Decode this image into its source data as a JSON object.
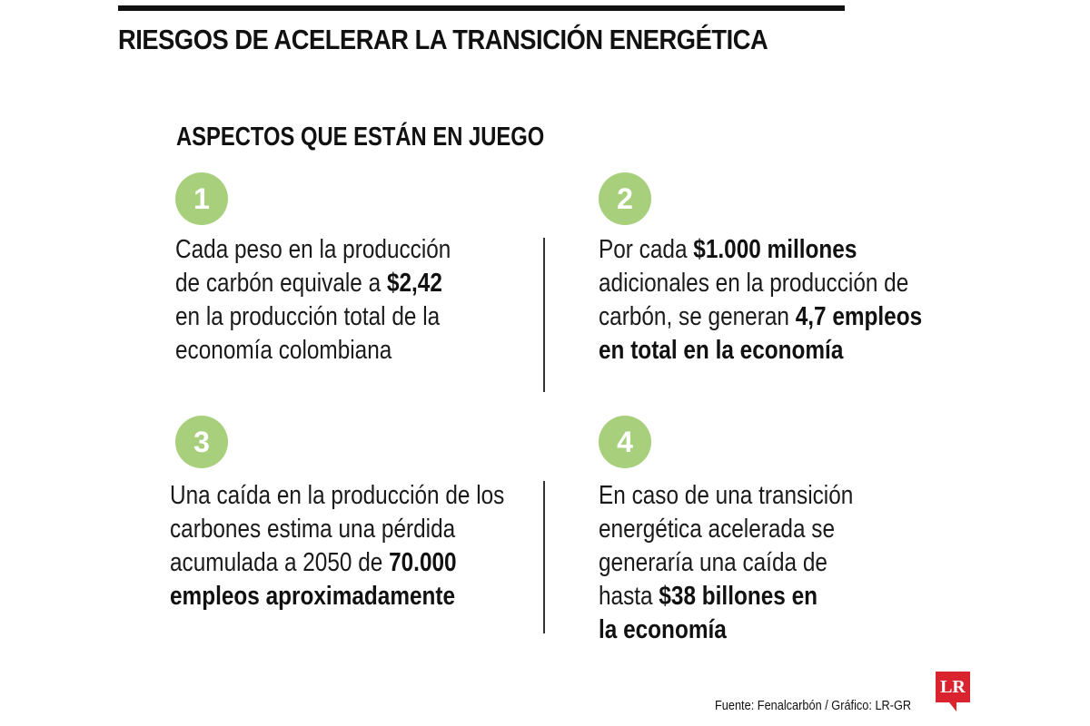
{
  "header": {
    "title": "RIESGOS DE ACELERAR LA TRANSICIÓN ENERGÉTICA"
  },
  "section": {
    "title": "ASPECTOS QUE ESTÁN EN JUEGO"
  },
  "colors": {
    "badge": "#a8d07c",
    "rule": "#111111",
    "logo": "#d9232e"
  },
  "items": [
    {
      "number": "1",
      "lines": [
        [
          {
            "t": "Cada peso en la producción",
            "b": false
          }
        ],
        [
          {
            "t": "de carbón equivale a ",
            "b": false
          },
          {
            "t": "$2,42",
            "b": true
          }
        ],
        [
          {
            "t": "en la producción total de la",
            "b": false
          }
        ],
        [
          {
            "t": "economía colombiana",
            "b": false
          }
        ]
      ]
    },
    {
      "number": "2",
      "lines": [
        [
          {
            "t": "Por cada ",
            "b": false
          },
          {
            "t": "$1.000 millones",
            "b": true
          }
        ],
        [
          {
            "t": "adicionales en la producción de",
            "b": false
          }
        ],
        [
          {
            "t": "carbón, se generan ",
            "b": false
          },
          {
            "t": "4,7 empleos",
            "b": true
          }
        ],
        [
          {
            "t": "en total en la economía",
            "b": true
          }
        ]
      ]
    },
    {
      "number": "3",
      "lines": [
        [
          {
            "t": "Una caída en la producción de los",
            "b": false
          }
        ],
        [
          {
            "t": "carbones estima una pérdida",
            "b": false
          }
        ],
        [
          {
            "t": "acumulada a 2050 de ",
            "b": false
          },
          {
            "t": "70.000",
            "b": true
          }
        ],
        [
          {
            "t": "empleos aproximadamente",
            "b": true
          }
        ]
      ]
    },
    {
      "number": "4",
      "lines": [
        [
          {
            "t": "En caso de una transición",
            "b": false
          }
        ],
        [
          {
            "t": "energética acelerada se",
            "b": false
          }
        ],
        [
          {
            "t": "generaría una caída de",
            "b": false
          }
        ],
        [
          {
            "t": "hasta ",
            "b": false
          },
          {
            "t": "$38 billones en",
            "b": true
          }
        ],
        [
          {
            "t": "la economía",
            "b": true
          }
        ]
      ]
    }
  ],
  "footer": {
    "source": "Fuente: Fenalcarbón / Gráfico: LR-GR",
    "logo_text": "LR"
  }
}
